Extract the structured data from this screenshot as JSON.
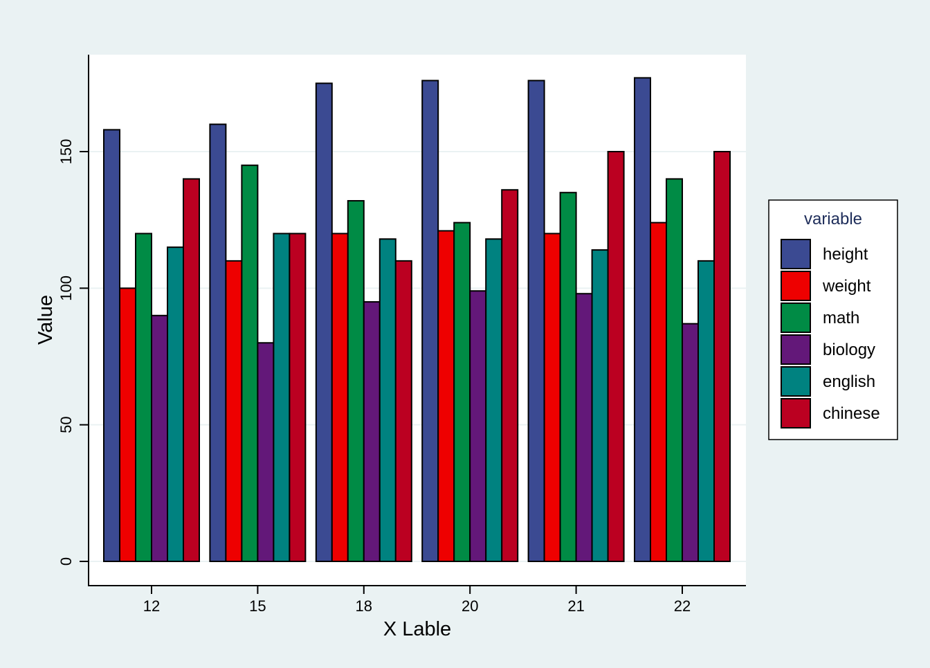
{
  "chart_data": {
    "type": "bar",
    "xlabel": "X Lable",
    "ylabel": "Value",
    "categories": [
      "12",
      "15",
      "18",
      "20",
      "21",
      "22"
    ],
    "ylim": [
      0,
      180
    ],
    "yticks": [
      0,
      50,
      100,
      150
    ],
    "grid": true,
    "legend": {
      "title": "variable",
      "placement": "right"
    },
    "series": [
      {
        "name": "height",
        "color": "#3b4a92",
        "values": [
          158,
          160,
          175,
          176,
          176,
          177
        ]
      },
      {
        "name": "weight",
        "color": "#ee0000",
        "values": [
          100,
          110,
          120,
          121,
          120,
          124
        ]
      },
      {
        "name": "math",
        "color": "#008b45",
        "values": [
          120,
          145,
          132,
          124,
          135,
          140
        ]
      },
      {
        "name": "biology",
        "color": "#631879",
        "values": [
          90,
          80,
          95,
          99,
          98,
          87
        ]
      },
      {
        "name": "english",
        "color": "#008280",
        "values": [
          115,
          120,
          118,
          118,
          114,
          110
        ]
      },
      {
        "name": "chinese",
        "color": "#bb0021",
        "values": [
          140,
          120,
          110,
          136,
          150,
          150
        ]
      }
    ]
  }
}
